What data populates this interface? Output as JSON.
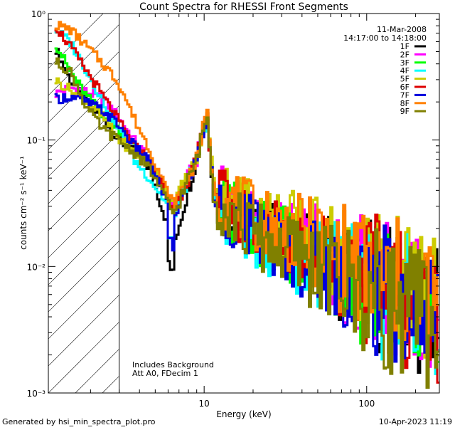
{
  "chart_data": {
    "type": "line",
    "title": "Count Spectra for RHESSI Front Segments",
    "xlabel": "Energy (keV)",
    "ylabel": "counts cm⁻² s⁻¹ keV⁻¹",
    "x_scale": "log",
    "y_scale": "log",
    "xlim": [
      1.1,
      280
    ],
    "ylim": [
      0.001,
      1.0
    ],
    "x_ticks": [
      {
        "value": 10,
        "label": "10"
      },
      {
        "value": 100,
        "label": "100"
      }
    ],
    "y_ticks": [
      {
        "value": 0.001,
        "label": "10⁻³"
      },
      {
        "value": 0.01,
        "label": "10⁻²"
      },
      {
        "value": 0.1,
        "label": "10⁻¹"
      },
      {
        "value": 1,
        "label": "10⁰"
      }
    ],
    "date": "11-Mar-2008",
    "time_range": "14:17:00 to 14:18:00",
    "annotations": [
      "Includes Background",
      "Att A0, FDecim 1"
    ],
    "shaded_region_upper_energy": 3.0,
    "footer_left": "Generated by hsi_min_spectra_plot.pro",
    "footer_right": "10-Apr-2023 11:19",
    "series": [
      {
        "name": "1F",
        "color": "#000000",
        "low": [
          0.55,
          0.3,
          0.2,
          0.15,
          0.1,
          0.08,
          0.06
        ],
        "p65": 0.015,
        "peak": 0.16,
        "post": 0.035,
        "f20": 0.02,
        "f50": 0.012,
        "f100": 0.008,
        "f280": 0.004
      },
      {
        "name": "2F",
        "color": "#ff00ff",
        "low": [
          0.23,
          0.26,
          0.24,
          0.21,
          0.15,
          0.1,
          0.07
        ],
        "p65": 0.03,
        "peak": 0.17,
        "post": 0.04,
        "f20": 0.022,
        "f50": 0.013,
        "f100": 0.008,
        "f280": 0.004
      },
      {
        "name": "3F",
        "color": "#00ff00",
        "low": [
          0.6,
          0.35,
          0.22,
          0.16,
          0.12,
          0.09,
          0.065
        ],
        "p65": 0.028,
        "peak": 0.15,
        "post": 0.035,
        "f20": 0.02,
        "f50": 0.012,
        "f100": 0.007,
        "f280": 0.004
      },
      {
        "name": "4F",
        "color": "#00ffff",
        "low": [
          0.75,
          0.6,
          0.35,
          0.2,
          0.12,
          0.07,
          0.05
        ],
        "p65": 0.026,
        "peak": 0.15,
        "post": 0.032,
        "f20": 0.018,
        "f50": 0.011,
        "f100": 0.007,
        "f280": 0.004
      },
      {
        "name": "5F",
        "color": "#cccc00",
        "low": [
          0.3,
          0.25,
          0.2,
          0.15,
          0.1,
          0.08,
          0.07
        ],
        "p65": 0.032,
        "peak": 0.16,
        "post": 0.045,
        "f20": 0.028,
        "f50": 0.016,
        "f100": 0.01,
        "f280": 0.005
      },
      {
        "name": "6F",
        "color": "#dd0000",
        "low": [
          0.82,
          0.55,
          0.35,
          0.22,
          0.14,
          0.09,
          0.07
        ],
        "p65": 0.028,
        "peak": 0.16,
        "post": 0.038,
        "f20": 0.022,
        "f50": 0.013,
        "f100": 0.008,
        "f280": 0.004
      },
      {
        "name": "7F",
        "color": "#0000dd",
        "low": [
          0.21,
          0.22,
          0.2,
          0.17,
          0.13,
          0.09,
          0.07
        ],
        "p65": 0.024,
        "peak": 0.15,
        "post": 0.033,
        "f20": 0.019,
        "f50": 0.011,
        "f100": 0.007,
        "f280": 0.004
      },
      {
        "name": "8F",
        "color": "#ff8000",
        "low": [
          0.82,
          0.75,
          0.55,
          0.4,
          0.28,
          0.15,
          0.085
        ],
        "p65": 0.03,
        "peak": 0.17,
        "post": 0.04,
        "f20": 0.025,
        "f50": 0.015,
        "f100": 0.009,
        "f280": 0.005
      },
      {
        "name": "9F",
        "color": "#808000",
        "low": [
          0.42,
          0.35,
          0.18,
          0.12,
          0.1,
          0.08,
          0.06
        ],
        "p65": 0.026,
        "peak": 0.16,
        "post": 0.035,
        "f20": 0.018,
        "f50": 0.01,
        "f100": 0.006,
        "f280": 0.0035
      }
    ]
  }
}
